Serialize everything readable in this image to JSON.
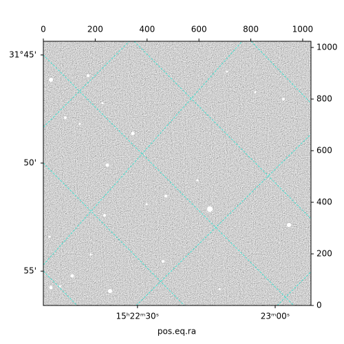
{
  "chart_data": {
    "type": "image",
    "xlabel": "pos.eq.ra",
    "xlim": [
      0,
      1032
    ],
    "ylim": [
      0,
      1024
    ],
    "xticks": [
      0,
      200,
      400,
      600,
      800,
      1000
    ],
    "yticks": [
      0,
      200,
      400,
      600,
      800,
      1000
    ],
    "bottom_ticks": [
      {
        "value": 363,
        "label": "15ʰ22ᵐ30ˢ"
      },
      {
        "value": 894,
        "label": "23ᵐ00ˢ"
      }
    ],
    "left_ticks": [
      {
        "value": 971,
        "label": "31°45'"
      },
      {
        "value": 552,
        "label": "50'"
      },
      {
        "value": 133,
        "label": "55'"
      }
    ],
    "grid_color": "#40e0d0"
  }
}
